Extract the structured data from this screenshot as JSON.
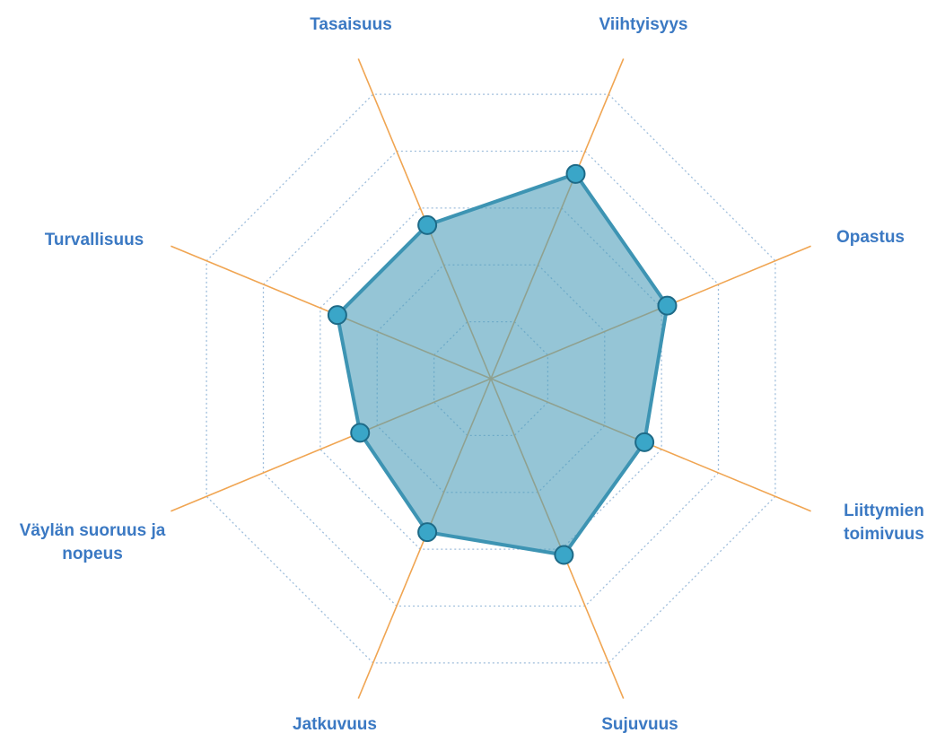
{
  "chart_data": {
    "type": "radar",
    "categories": [
      "Viihtyisyys",
      "Opastus",
      "Liittymien toimivuus",
      "Sujuvuus",
      "Jatkuvuus",
      "Väylän suoruus ja nopeus",
      "Turvallisuus",
      "Tasaisuus"
    ],
    "values": [
      3.6,
      3.1,
      2.7,
      3.1,
      2.7,
      2.3,
      2.7,
      2.7
    ],
    "color": "#4f9fbb",
    "rlim": [
      0,
      5
    ],
    "rticks": [
      1,
      2,
      3,
      4,
      5
    ],
    "grid": true
  }
}
